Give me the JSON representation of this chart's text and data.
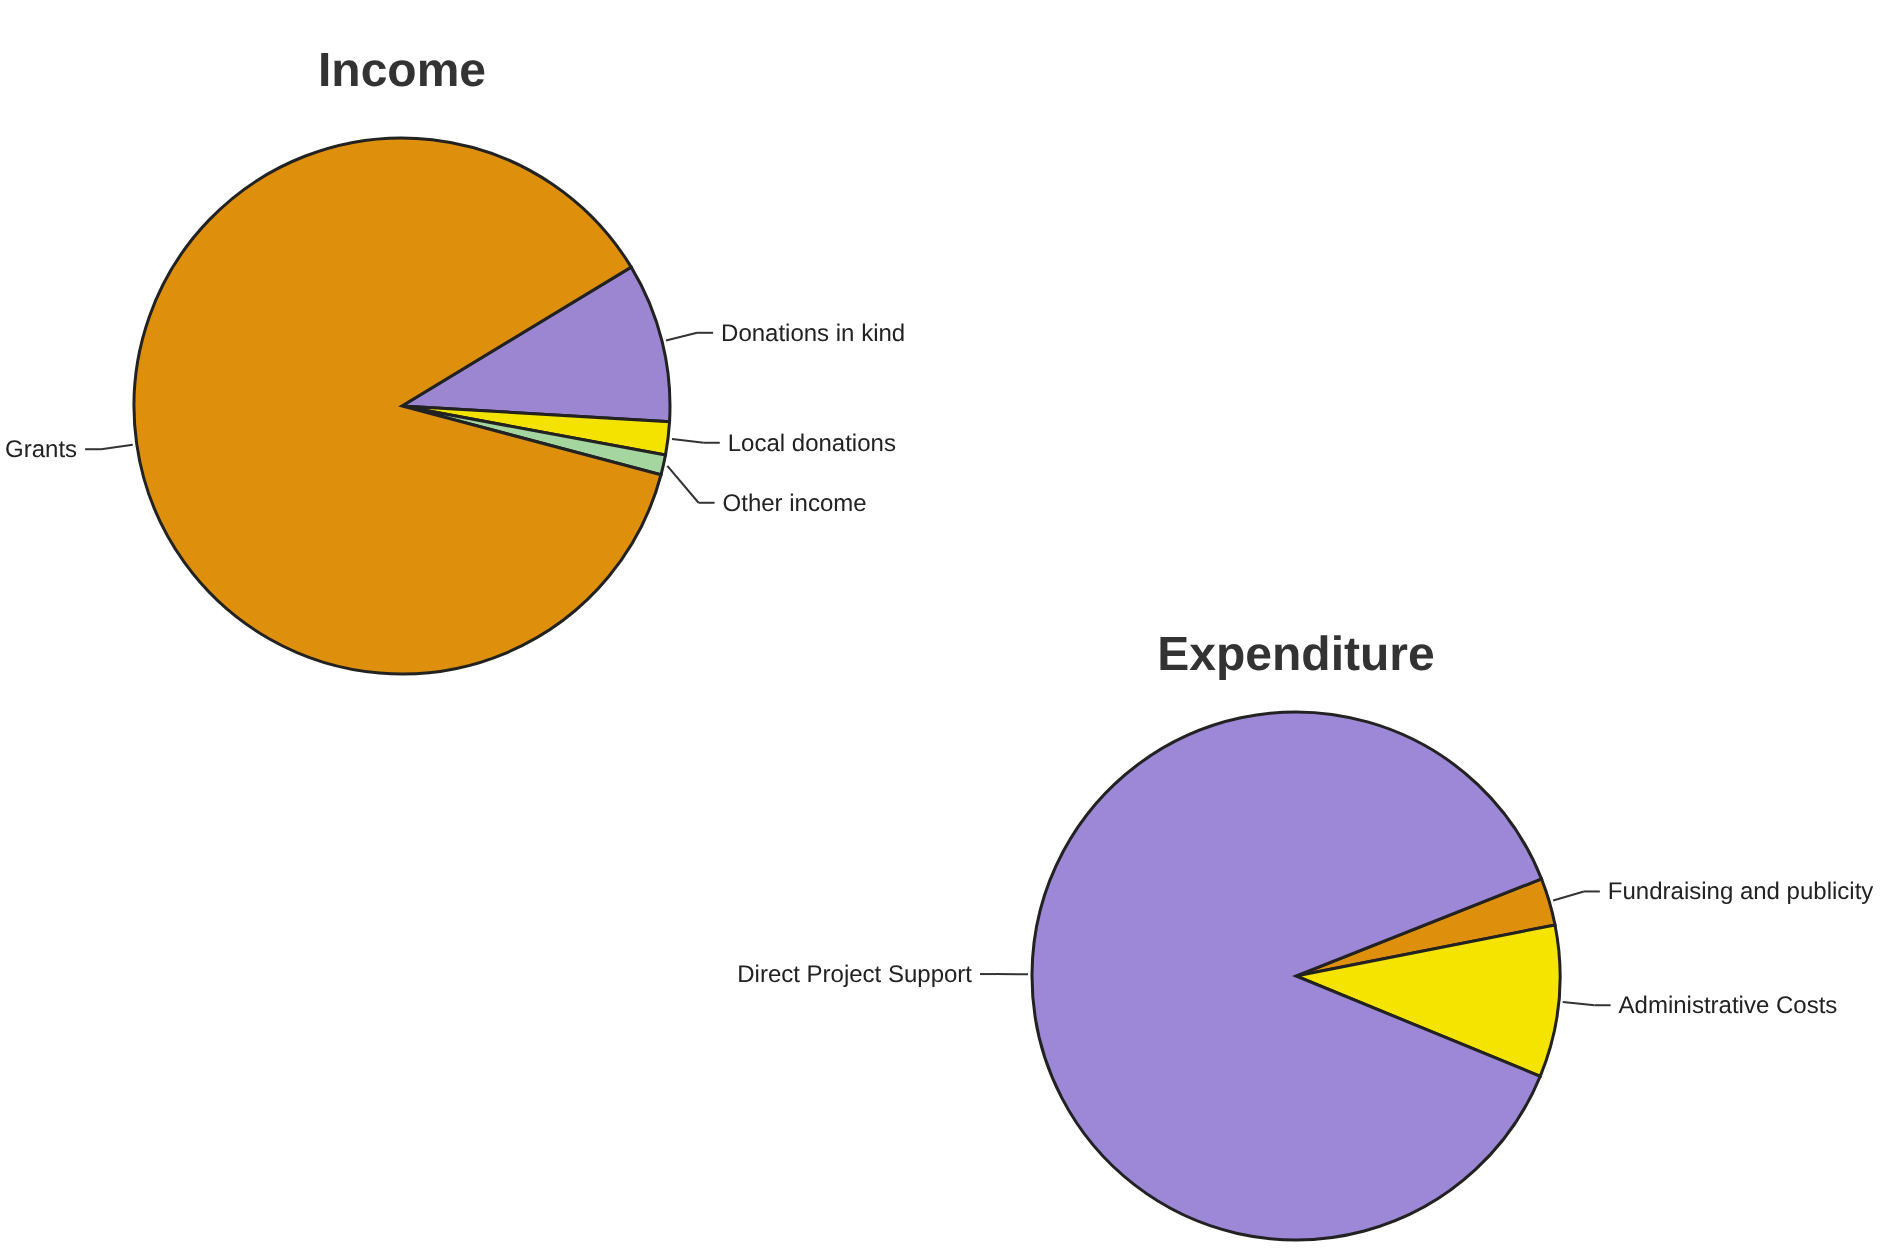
{
  "chart_data": [
    {
      "type": "pie",
      "title": "Income",
      "categories": [
        "Donations in kind",
        "Local donations",
        "Other income",
        "Grants"
      ],
      "values": [
        9.6,
        2.0,
        1.2,
        87.2
      ],
      "colors": [
        "#9c86d2",
        "#f4e200",
        "#a6d6a0",
        "#de900c"
      ]
    },
    {
      "type": "pie",
      "title": "Expenditure",
      "categories": [
        "Fundraising and publicity",
        "Administrative Costs",
        "Direct Project Support"
      ],
      "values": [
        2.9,
        9.3,
        87.8
      ],
      "colors": [
        "#de900c",
        "#f4e400",
        "#9c88d6"
      ]
    }
  ]
}
